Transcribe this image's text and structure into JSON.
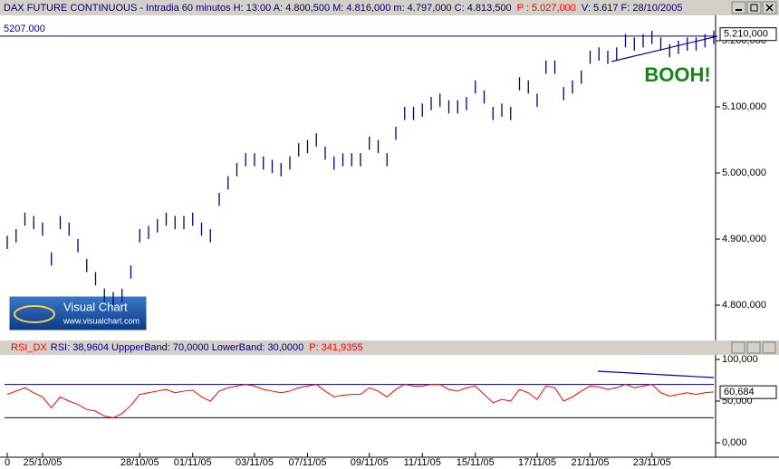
{
  "header": {
    "info": "DAX FUTURE CONTINUOUS - Intradia 60 minutos  H: 13:00  A: 4.800,500  M: 4.816,000  m: 4.797,000  C: 4.813,500",
    "p": "P : 5.027,000",
    "rest": "V: 5.617  F: 28/10/2005"
  },
  "rsi_header": {
    "name": "RSI_DX",
    "info": "RSI: 38,9604  UppperBand: 70,0000  LowerBand: 30,0000",
    "p": "P: 341,9355"
  },
  "logo": {
    "title": "Visual Chart",
    "url": "www.visualchart.com"
  },
  "chart_data": [
    {
      "type": "ohlc",
      "color": "#000080",
      "high": [
        4905,
        4915,
        4940,
        4935,
        4925,
        4880,
        4935,
        4925,
        4900,
        4870,
        4850,
        4825,
        4820,
        4825,
        4860,
        4915,
        4920,
        4930,
        4940,
        4935,
        4935,
        4940,
        4925,
        4915,
        4970,
        4995,
        5015,
        5030,
        5030,
        5025,
        5020,
        5015,
        5025,
        5045,
        5050,
        5060,
        5040,
        5025,
        5030,
        5030,
        5030,
        5055,
        5050,
        5030,
        5070,
        5100,
        5100,
        5105,
        5115,
        5120,
        5110,
        5110,
        5115,
        5140,
        5125,
        5100,
        5105,
        5100,
        5145,
        5140,
        5120,
        5170,
        5170,
        5130,
        5140,
        5155,
        5185,
        5190,
        5185,
        5190,
        5210,
        5205,
        5210,
        5215,
        5205,
        5195,
        5200,
        5205,
        5205,
        5210,
        5215
      ],
      "low": [
        4885,
        4895,
        4920,
        4915,
        4905,
        4860,
        4915,
        4905,
        4880,
        4850,
        4830,
        4805,
        4800,
        4805,
        4840,
        4895,
        4900,
        4910,
        4920,
        4915,
        4915,
        4920,
        4905,
        4895,
        4950,
        4975,
        4995,
        5010,
        5010,
        5005,
        5000,
        4995,
        5005,
        5025,
        5030,
        5040,
        5020,
        5005,
        5010,
        5010,
        5010,
        5035,
        5030,
        5010,
        5050,
        5080,
        5080,
        5085,
        5095,
        5100,
        5090,
        5090,
        5095,
        5120,
        5105,
        5080,
        5085,
        5080,
        5125,
        5120,
        5100,
        5150,
        5150,
        5110,
        5120,
        5135,
        5165,
        5170,
        5165,
        5170,
        5190,
        5185,
        5190,
        5195,
        5185,
        5175,
        5180,
        5185,
        5185,
        5190,
        5195
      ],
      "ylim": [
        4748,
        5237
      ],
      "yticks": [
        {
          "value": 4800,
          "label": "4.800,000"
        },
        {
          "value": 4900,
          "label": "4.900,000"
        },
        {
          "value": 5000,
          "label": "5.000,000"
        },
        {
          "value": 5100,
          "label": "5.100,000"
        },
        {
          "value": 5200,
          "label": "5.200,000"
        }
      ],
      "level": {
        "value": 5207,
        "label": "5207.000"
      },
      "last": {
        "value": 5210,
        "label": "5.210,000"
      },
      "annotation": "BOOH!"
    },
    {
      "type": "line",
      "color": "#ff0000",
      "categories": [
        "0",
        null,
        null,
        null,
        "25/10/05",
        null,
        null,
        null,
        null,
        null,
        null,
        null,
        null,
        null,
        null,
        "28/10/05",
        null,
        null,
        null,
        null,
        null,
        "01/11/05",
        null,
        null,
        null,
        null,
        null,
        null,
        "03/11/05",
        null,
        null,
        null,
        null,
        null,
        "07/11/05",
        null,
        null,
        null,
        null,
        null,
        null,
        "09/11/05",
        null,
        null,
        null,
        null,
        null,
        "11/11/05",
        null,
        null,
        null,
        null,
        null,
        "15/11/05",
        null,
        null,
        null,
        null,
        null,
        null,
        "17/11/05",
        null,
        null,
        null,
        null,
        null,
        "21/11/05",
        null,
        null,
        null,
        null,
        null,
        null,
        "23/11/05",
        null,
        null,
        null,
        null,
        null,
        null,
        null
      ],
      "values": [
        58,
        62,
        66,
        60,
        55,
        42,
        55,
        50,
        46,
        40,
        38,
        32,
        30,
        35,
        45,
        58,
        60,
        62,
        64,
        60,
        62,
        63,
        55,
        50,
        62,
        66,
        68,
        70,
        68,
        64,
        62,
        60,
        62,
        66,
        68,
        70,
        62,
        55,
        57,
        58,
        58,
        66,
        62,
        55,
        64,
        70,
        68,
        68,
        70,
        70,
        64,
        62,
        66,
        68,
        58,
        48,
        52,
        50,
        64,
        60,
        52,
        68,
        66,
        50,
        55,
        62,
        68,
        67,
        64,
        66,
        70,
        66,
        68,
        70,
        60,
        56,
        58,
        60,
        58,
        60,
        61
      ],
      "ylim": [
        -17.4,
        105.4
      ],
      "yticks": [
        {
          "value": 0,
          "label": "0,000"
        },
        {
          "value": 50,
          "label": "50,000"
        },
        {
          "value": 100,
          "label": "100,000"
        }
      ],
      "bands": [
        70,
        30
      ],
      "last": {
        "value": 60.684,
        "label": "60,684"
      }
    }
  ]
}
